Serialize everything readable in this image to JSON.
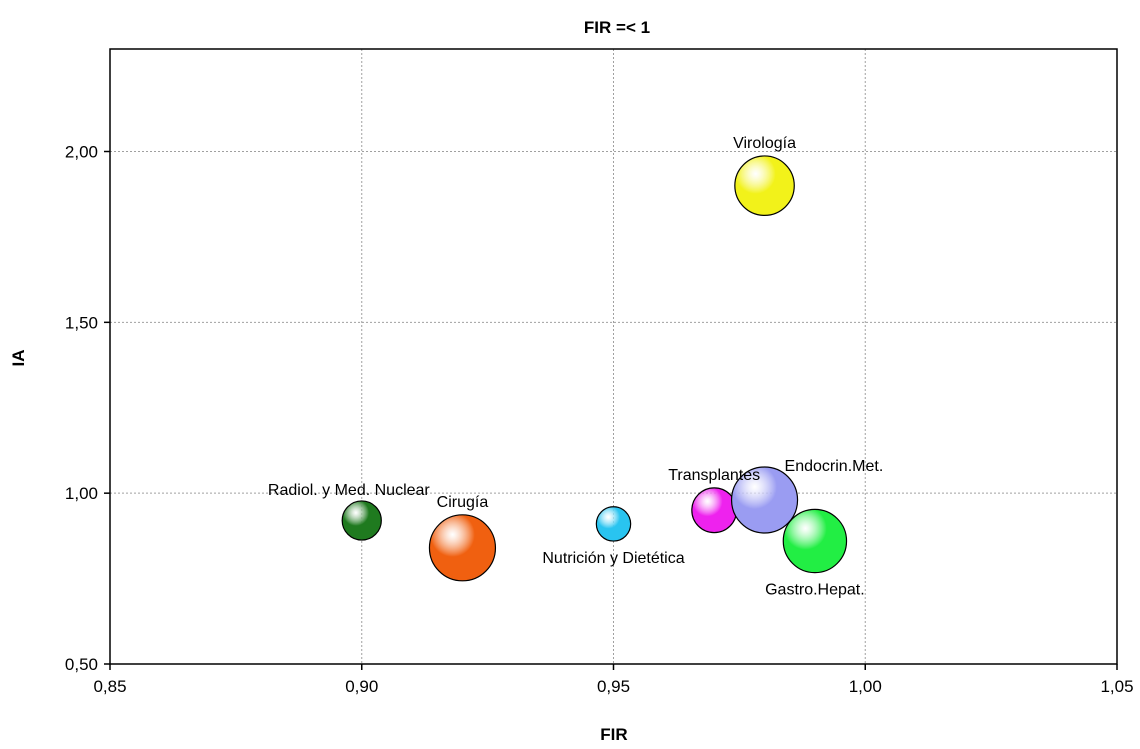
{
  "chart_data": {
    "type": "scatter",
    "variant": "bubble",
    "title": "FIR =< 1",
    "xlabel": "FIR",
    "ylabel": "IA",
    "xlim": [
      0.85,
      1.05
    ],
    "ylim": [
      0.5,
      2.3
    ],
    "x_ticks": [
      0.85,
      0.9,
      0.95,
      1.0,
      1.05
    ],
    "x_tick_labels": [
      "0,85",
      "0,90",
      "0,95",
      "1,00",
      "1,05"
    ],
    "y_ticks": [
      0.5,
      1.0,
      1.5,
      2.0
    ],
    "y_tick_labels": [
      "0,50",
      "1,00",
      "1,50",
      "2,00"
    ],
    "grid": true,
    "points": [
      {
        "label": "Radiol. y Med. Nuclear",
        "x": 0.9,
        "y": 0.92,
        "size": 1.3,
        "color": "#1f7a1f",
        "label_pos": "above-left"
      },
      {
        "label": "Cirugía",
        "x": 0.92,
        "y": 0.84,
        "size": 3.7,
        "color": "#f06010",
        "label_pos": "above"
      },
      {
        "label": "Nutrición y Dietética",
        "x": 0.95,
        "y": 0.91,
        "size": 1.0,
        "color": "#29c4f0",
        "label_pos": "below"
      },
      {
        "label": "Transplantes",
        "x": 0.97,
        "y": 0.95,
        "size": 1.7,
        "color": "#ee22ee",
        "label_pos": "above"
      },
      {
        "label": "Endocrin.Met.",
        "x": 0.98,
        "y": 0.98,
        "size": 3.7,
        "color": "#9a9cf2",
        "label_pos": "above-right"
      },
      {
        "label": "Gastro.Hepat.",
        "x": 0.99,
        "y": 0.86,
        "size": 3.4,
        "color": "#22ee44",
        "label_pos": "below"
      },
      {
        "label": "Virología",
        "x": 0.98,
        "y": 1.9,
        "size": 3.0,
        "color": "#f2f21a",
        "label_pos": "above"
      }
    ]
  }
}
